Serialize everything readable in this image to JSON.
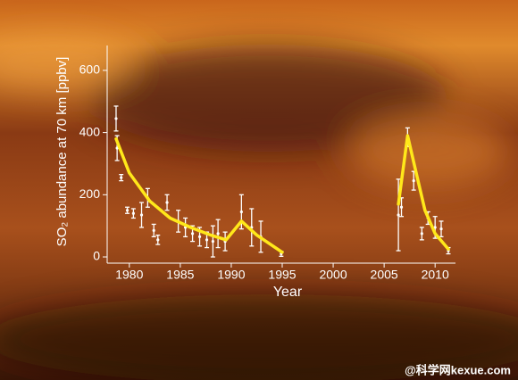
{
  "chart_data": {
    "type": "scatter",
    "y_label": "SO₂ abundance at 70 km [ppbv]",
    "x_label": "Year",
    "watermark": "@科学网kexue.com",
    "xlim": [
      1978,
      2012
    ],
    "ylim": [
      -20,
      680
    ],
    "xticks": [
      1980,
      1985,
      1990,
      1995,
      2000,
      2005,
      2010
    ],
    "yticks": [
      0,
      200,
      400,
      600
    ],
    "points": {
      "color": "#ffffff",
      "x": [
        1978.7,
        1978.8,
        1979.2,
        1979.8,
        1980.4,
        1981.2,
        1981.8,
        1982.4,
        1982.8,
        1983.7,
        1984.8,
        1985.5,
        1986.2,
        1986.9,
        1987.6,
        1988.2,
        1988.7,
        1989.4,
        1991.0,
        1992.0,
        1992.9,
        1994.9,
        2006.4,
        2006.7,
        2007.3,
        2007.9,
        2008.7,
        2009.3,
        2010.0,
        2010.6,
        2011.3
      ],
      "values": [
        445,
        350,
        255,
        150,
        140,
        135,
        190,
        85,
        55,
        175,
        115,
        95,
        75,
        65,
        55,
        50,
        75,
        50,
        145,
        95,
        65,
        10,
        135,
        160,
        385,
        245,
        75,
        125,
        95,
        90,
        20
      ],
      "errors": [
        40,
        40,
        10,
        10,
        15,
        40,
        30,
        20,
        15,
        25,
        35,
        30,
        25,
        30,
        25,
        50,
        45,
        30,
        55,
        60,
        50,
        8,
        115,
        30,
        30,
        30,
        20,
        20,
        35,
        25,
        10
      ]
    },
    "fit": {
      "color": "#ffe81a",
      "x": [
        1978.7,
        1980,
        1982,
        1984,
        1986,
        1988,
        1989.5,
        1991,
        1992.5,
        1995,
        2000,
        2006.4,
        2007.3,
        2008,
        2009,
        2010,
        2011.3
      ],
      "values": [
        380,
        270,
        180,
        125,
        95,
        70,
        55,
        115,
        70,
        15,
        null,
        170,
        390,
        290,
        150,
        75,
        25
      ]
    }
  }
}
